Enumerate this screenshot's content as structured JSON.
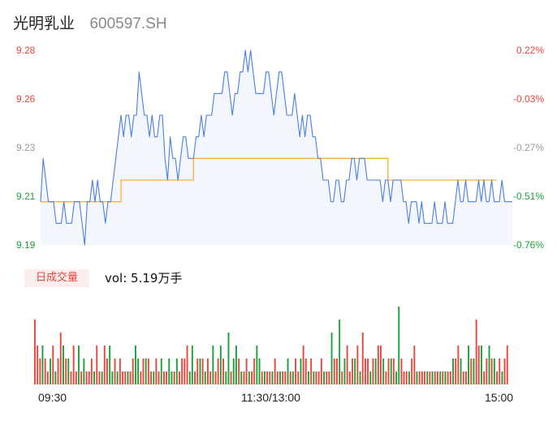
{
  "header": {
    "stock_name": "光明乳业",
    "stock_code": "600597.SH"
  },
  "colors": {
    "up": "#e8453c",
    "down": "#1aa13a",
    "neutral": "#999999",
    "price_line": "#4a7fe0",
    "avg_line": "#f5b23a",
    "area_fill": "#f3f6fd"
  },
  "volume": {
    "badge_label": "日成交量",
    "vol_text": "vol: 5.19万手"
  },
  "chart_data": [
    {
      "type": "line",
      "y_left_ticks": [
        "9.28",
        "9.26",
        "9.23",
        "9.21",
        "9.19"
      ],
      "y_right_ticks": [
        "0.22%",
        "-0.03%",
        "-0.27%",
        "-0.51%",
        "-0.76%"
      ],
      "ylim": [
        9.19,
        9.28
      ],
      "prev_close": 9.23,
      "x_labels": [
        "09:30",
        "11:30/13:00",
        "15:00"
      ],
      "series": [
        {
          "key": "price",
          "values": [
            9.21,
            9.23,
            9.22,
            9.21,
            9.21,
            9.21,
            9.2,
            9.2,
            9.2,
            9.21,
            9.2,
            9.2,
            9.2,
            9.21,
            9.21,
            9.21,
            9.2,
            9.19,
            9.21,
            9.21,
            9.22,
            9.21,
            9.22,
            9.21,
            9.21,
            9.2,
            9.21,
            9.21,
            9.22,
            9.23,
            9.24,
            9.25,
            9.24,
            9.25,
            9.25,
            9.24,
            9.25,
            9.25,
            9.27,
            9.26,
            9.25,
            9.25,
            9.24,
            9.25,
            9.24,
            9.24,
            9.25,
            9.25,
            9.23,
            9.22,
            9.24,
            9.23,
            9.23,
            9.22,
            9.23,
            9.24,
            9.24,
            9.23,
            9.23,
            9.23,
            9.24,
            9.24,
            9.25,
            9.24,
            9.25,
            9.25,
            9.25,
            9.26,
            9.26,
            9.26,
            9.26,
            9.27,
            9.27,
            9.26,
            9.25,
            9.26,
            9.26,
            9.27,
            9.27,
            9.28,
            9.27,
            9.28,
            9.27,
            9.26,
            9.26,
            9.26,
            9.26,
            9.27,
            9.27,
            9.26,
            9.25,
            9.26,
            9.27,
            9.27,
            9.26,
            9.25,
            9.25,
            9.25,
            9.26,
            9.25,
            9.24,
            9.25,
            9.24,
            9.25,
            9.25,
            9.24,
            9.24,
            9.23,
            9.23,
            9.22,
            9.22,
            9.22,
            9.21,
            9.21,
            9.22,
            9.22,
            9.21,
            9.21,
            9.22,
            9.22,
            9.23,
            9.23,
            9.22,
            9.23,
            9.23,
            9.23,
            9.22,
            9.22,
            9.22,
            9.22,
            9.22,
            9.22,
            9.21,
            9.22,
            9.22,
            9.21,
            9.22,
            9.22,
            9.22,
            9.22,
            9.21,
            9.21,
            9.2,
            9.21,
            9.21,
            9.21,
            9.2,
            9.21,
            9.2,
            9.2,
            9.2,
            9.2,
            9.21,
            9.2,
            9.2,
            9.2,
            9.21,
            9.2,
            9.2,
            9.2,
            9.21,
            9.22,
            9.21,
            9.21,
            9.22,
            9.21,
            9.21,
            9.21,
            9.21,
            9.22,
            9.21,
            9.22,
            9.21,
            9.21,
            9.22,
            9.21,
            9.21,
            9.21,
            9.22,
            9.21,
            9.21,
            9.21,
            9.21
          ]
        },
        {
          "key": "average",
          "values": [
            9.21,
            9.21,
            9.21,
            9.21,
            9.21,
            9.21,
            9.21,
            9.21,
            9.21,
            9.21,
            9.21,
            9.21,
            9.21,
            9.21,
            9.21,
            9.21,
            9.21,
            9.21,
            9.21,
            9.21,
            9.21,
            9.21,
            9.21,
            9.21,
            9.21,
            9.21,
            9.21,
            9.21,
            9.21,
            9.21,
            9.21,
            9.22,
            9.22,
            9.22,
            9.22,
            9.22,
            9.22,
            9.22,
            9.22,
            9.22,
            9.22,
            9.22,
            9.22,
            9.22,
            9.22,
            9.22,
            9.22,
            9.22,
            9.22,
            9.22,
            9.22,
            9.22,
            9.22,
            9.22,
            9.22,
            9.22,
            9.22,
            9.22,
            9.22,
            9.23,
            9.23,
            9.23,
            9.23,
            9.23,
            9.23,
            9.23,
            9.23,
            9.23,
            9.23,
            9.23,
            9.23,
            9.23,
            9.23,
            9.23,
            9.23,
            9.23,
            9.23,
            9.23,
            9.23,
            9.23,
            9.23,
            9.23,
            9.23,
            9.23,
            9.23,
            9.23,
            9.23,
            9.23,
            9.23,
            9.23,
            9.23,
            9.23,
            9.23,
            9.23,
            9.23,
            9.23,
            9.23,
            9.23,
            9.23,
            9.23,
            9.23,
            9.23,
            9.23,
            9.23,
            9.23,
            9.23,
            9.23,
            9.23,
            9.23,
            9.23,
            9.23,
            9.23,
            9.23,
            9.23,
            9.23,
            9.23,
            9.23,
            9.23,
            9.23,
            9.23,
            9.23,
            9.23,
            9.23,
            9.23,
            9.23,
            9.23,
            9.23,
            9.23,
            9.23,
            9.23,
            9.23,
            9.23,
            9.23,
            9.23,
            9.22,
            9.22,
            9.22,
            9.22,
            9.22,
            9.22,
            9.22,
            9.22,
            9.22,
            9.22,
            9.22,
            9.22,
            9.22,
            9.22,
            9.22,
            9.22,
            9.22,
            9.22,
            9.22,
            9.22,
            9.22,
            9.22,
            9.22,
            9.22,
            9.22,
            9.22,
            9.22,
            9.22,
            9.22,
            9.22,
            9.22,
            9.22,
            9.22,
            9.22,
            9.22,
            9.22,
            9.22,
            9.22,
            9.22,
            9.22,
            9.22,
            9.22,
            9.22
          ]
        }
      ]
    },
    {
      "type": "bar",
      "key": "volume",
      "values": [
        5,
        3,
        2,
        3,
        2,
        1,
        2,
        3,
        1,
        2,
        4,
        3,
        2,
        2,
        1,
        3,
        1,
        3,
        1,
        2,
        1,
        1,
        2,
        1,
        3,
        1,
        1,
        3,
        2,
        3,
        1,
        2,
        1,
        2,
        1,
        1,
        1,
        1,
        2,
        3,
        2,
        1,
        2,
        2,
        2,
        1,
        1,
        2,
        1,
        2,
        1,
        1,
        2,
        1,
        1,
        2,
        1,
        2,
        2,
        3,
        1,
        3,
        1,
        2,
        2,
        2,
        1,
        2,
        1,
        3,
        1,
        2,
        3,
        2,
        1,
        4,
        1,
        2,
        3,
        2,
        1,
        1,
        2,
        1,
        1,
        2,
        3,
        2,
        1,
        1,
        1,
        1,
        1,
        2,
        1,
        1,
        1,
        1,
        2,
        1,
        1,
        2,
        1,
        2,
        3,
        2,
        1,
        2,
        1,
        1,
        1,
        2,
        1,
        1,
        1,
        4,
        2,
        2,
        5,
        1,
        2,
        3,
        1,
        2,
        2,
        3,
        1,
        4,
        2,
        2,
        1,
        2,
        2,
        3,
        3,
        2,
        1,
        2,
        2,
        2,
        1,
        6,
        2,
        1,
        1,
        1,
        2,
        3,
        1,
        1,
        1,
        1,
        1,
        1,
        1,
        1,
        1,
        1,
        1,
        1,
        1,
        1,
        2,
        2,
        3,
        2,
        1,
        1,
        3,
        2,
        2,
        5,
        3,
        3,
        1,
        2,
        3,
        2,
        2,
        1,
        2,
        1,
        2,
        3
      ],
      "up": [
        1,
        1,
        1,
        0,
        1,
        1,
        0,
        1,
        0,
        1,
        1,
        0,
        1,
        0,
        1,
        1,
        1,
        0,
        1,
        0,
        1,
        1,
        1,
        0,
        1,
        1,
        0,
        1,
        1,
        0,
        0,
        1,
        0,
        1,
        1,
        1,
        0,
        1,
        1,
        0,
        0,
        1,
        1,
        0,
        1,
        1,
        0,
        1,
        1,
        0,
        1,
        1,
        0,
        0,
        1,
        0,
        1,
        1,
        1,
        1,
        0,
        0,
        1,
        1,
        0,
        1,
        0,
        1,
        1,
        0,
        1,
        1,
        0,
        1,
        0,
        0,
        1,
        0,
        0,
        1,
        0,
        1,
        1,
        0,
        1,
        1,
        0,
        0,
        1,
        0,
        1,
        1,
        0,
        1,
        1,
        0,
        1,
        1,
        0,
        1,
        0,
        1,
        1,
        0,
        1,
        1,
        0,
        1,
        0,
        1,
        1,
        1,
        0,
        1,
        1,
        0,
        1,
        1,
        0,
        1,
        0,
        1,
        1,
        1,
        0,
        1,
        0,
        1,
        1,
        1,
        0,
        1,
        0,
        1,
        1,
        0,
        1,
        1,
        0,
        1,
        0,
        0,
        1,
        1,
        1,
        0,
        1,
        1,
        0,
        1,
        1,
        1,
        0,
        1,
        0,
        1,
        1,
        0,
        1,
        0,
        1,
        1,
        0,
        1,
        1,
        0,
        1,
        1,
        0,
        1,
        0,
        1,
        1,
        0,
        1,
        1,
        0,
        1,
        0,
        1,
        1,
        0,
        1,
        1
      ]
    }
  ]
}
